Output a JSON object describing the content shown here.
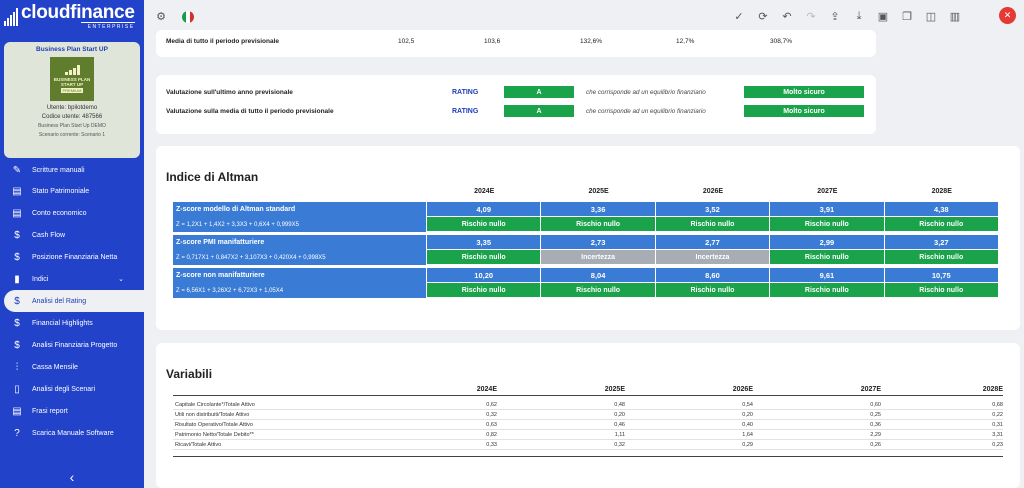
{
  "app": {
    "logo_name": "cloudfinance",
    "logo_tag": "ENTERPRISE"
  },
  "profile": {
    "title": "Business Plan Start UP",
    "image_text_1": "BUSINESS PLAN",
    "image_text_2": "START UP",
    "image_badge": "PREMIUM",
    "user_line": "Utente: bpilotdemo",
    "code_line": "Codice utente: 487566",
    "plan_line": "Business Plan Start Up DEMO",
    "scenario_line": "Scenario corrente: Scenario 1"
  },
  "sidebar": {
    "items": [
      {
        "label": "Scritture manuali",
        "icon": "pencil-icon",
        "glyph": "✎"
      },
      {
        "label": "Stato Patrimoniale",
        "icon": "document-icon",
        "glyph": "▤"
      },
      {
        "label": "Conto economico",
        "icon": "document-icon",
        "glyph": "▤"
      },
      {
        "label": "Cash Flow",
        "icon": "dollar-icon",
        "glyph": "$"
      },
      {
        "label": "Posizione Finanziaria Netta",
        "icon": "dollar-icon",
        "glyph": "$"
      },
      {
        "label": "Indici",
        "icon": "bar-chart-icon",
        "glyph": "▮"
      },
      {
        "label": "Analisi del Rating",
        "icon": "dollar-icon",
        "glyph": "$"
      },
      {
        "label": "Financial Highlights",
        "icon": "dollar-icon",
        "glyph": "$"
      },
      {
        "label": "Analisi Finanziaria Progetto",
        "icon": "dollar-icon",
        "glyph": "$"
      },
      {
        "label": "Cassa Mensile",
        "icon": "sliders-icon",
        "glyph": "⫶"
      },
      {
        "label": "Analisi degli Scenari",
        "icon": "book-icon",
        "glyph": "▯"
      },
      {
        "label": "Frasi report",
        "icon": "document-icon",
        "glyph": "▤"
      },
      {
        "label": "Scarica Manuale Software",
        "icon": "help-icon",
        "glyph": "?"
      }
    ],
    "collapse_glyph": "‹"
  },
  "topbar": {
    "icons": [
      "check-icon",
      "refresh-icon",
      "undo-icon",
      "redo-icon",
      "upload-icon",
      "download-icon",
      "save-icon",
      "copy-icon",
      "columns-icon",
      "panel-icon"
    ],
    "glyphs": [
      "✓",
      "⟳",
      "↶",
      "↷",
      "⇪",
      "⤓",
      "▣",
      "❐",
      "◫",
      "▥"
    ],
    "close_glyph": "✕",
    "settings_glyph": "⚙"
  },
  "media": {
    "label": "Media di tutto il periodo previsionale",
    "values": [
      "102,5",
      "103,6",
      "132,6%",
      "12,7%",
      "308,7%"
    ]
  },
  "valutazione": [
    {
      "label": "Valutazione sull'ultimo anno previsionale",
      "rating_label": "RATING",
      "rating": "A",
      "note": "che corrisponde ad un equilibrio finanziario",
      "level": "Molto sicuro"
    },
    {
      "label": "Valutazione sulla media di tutto il periodo previsionale",
      "rating_label": "RATING",
      "rating": "A",
      "note": "che corrisponde ad un equilibrio finanziario",
      "level": "Molto sicuro"
    }
  ],
  "altman": {
    "title": "Indice di Altman",
    "years": [
      "2024E",
      "2025E",
      "2026E",
      "2027E",
      "2028E"
    ],
    "blocks": [
      {
        "name": "Z-score modello di Altman standard",
        "formula": "Z = 1,2X1 + 1,4X2 + 3,3X3 + 0,6X4 + 0,999X5",
        "values": [
          "4,09",
          "3,36",
          "3,52",
          "3,91",
          "4,38"
        ],
        "status": [
          "Rischio nullo",
          "Rischio nullo",
          "Rischio nullo",
          "Rischio nullo",
          "Rischio nullo"
        ],
        "status_type": [
          "green",
          "green",
          "green",
          "green",
          "green"
        ]
      },
      {
        "name": "Z-score PMI manifatturiere",
        "formula": "Z = 0,717X1 + 0,847X2 + 3,107X3 + 0,420X4 + 0,998X5",
        "values": [
          "3,35",
          "2,73",
          "2,77",
          "2,99",
          "3,27"
        ],
        "status": [
          "Rischio nullo",
          "Incertezza",
          "Incertezza",
          "Rischio nullo",
          "Rischio nullo"
        ],
        "status_type": [
          "green",
          "grey",
          "grey",
          "green",
          "green"
        ]
      },
      {
        "name": "Z-score non manifatturiere",
        "formula": "Z = 6,56X1 + 3,26X2 + 6,72X3 + 1,05X4",
        "values": [
          "10,20",
          "8,04",
          "8,60",
          "9,61",
          "10,75"
        ],
        "status": [
          "Rischio nullo",
          "Rischio nullo",
          "Rischio nullo",
          "Rischio nullo",
          "Rischio nullo"
        ],
        "status_type": [
          "green",
          "green",
          "green",
          "green",
          "green"
        ]
      }
    ]
  },
  "variabili": {
    "title": "Variabili",
    "years": [
      "2024E",
      "2025E",
      "2026E",
      "2027E",
      "2028E"
    ],
    "rows": [
      {
        "label": "Capitale Circolante*/Totale Attivo",
        "values": [
          "0,62",
          "0,48",
          "0,54",
          "0,60",
          "0,68"
        ]
      },
      {
        "label": "Utili non distribuiti/Totale Attivo",
        "values": [
          "0,32",
          "0,20",
          "0,20",
          "0,25",
          "0,22"
        ]
      },
      {
        "label": "Risultato Operativo/Totale Attivo",
        "values": [
          "0,63",
          "0,46",
          "0,40",
          "0,36",
          "0,31"
        ]
      },
      {
        "label": "Patrimonio Netto/Totale Debito**",
        "values": [
          "0,82",
          "1,11",
          "1,64",
          "2,29",
          "3,31"
        ]
      },
      {
        "label": "Ricavi/Totale Attivo",
        "values": [
          "0,33",
          "0,32",
          "0,29",
          "0,26",
          "0,23"
        ]
      }
    ]
  },
  "colors": {
    "sidebar": "#2242c9",
    "accent_blue": "#3a7bd5",
    "green": "#1aa34a",
    "grey": "#a8adb5",
    "close": "#e53935"
  }
}
